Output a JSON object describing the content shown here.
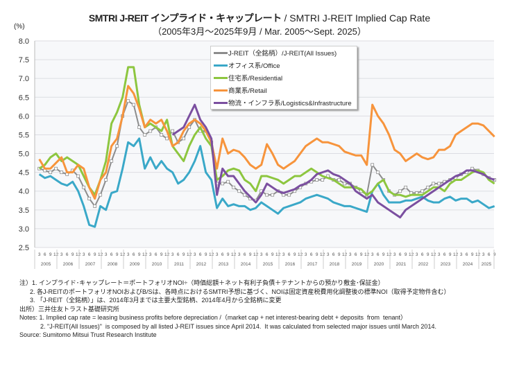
{
  "chart_data": {
    "type": "line",
    "title": "SMTRI J-REIT インプライド・キャップレート",
    "title_en": " / SMTRI J-REIT Implied Cap Rate",
    "subtitle": "（2005年3月～2025年9月 / Mar. 2005～Sept. 2025）",
    "ylabel": "(%)",
    "ylim": [
      2.5,
      8.0
    ],
    "yticks": [
      "2.5",
      "3.0",
      "3.5",
      "4.0",
      "4.5",
      "5.0",
      "5.5",
      "6.0",
      "6.5",
      "7.0",
      "7.5",
      "8.0"
    ],
    "month_ticks": [
      "3",
      "6",
      "9",
      "12"
    ],
    "years": [
      "2005",
      "2006",
      "2007",
      "2008",
      "2009",
      "2010",
      "2011",
      "2012",
      "2013",
      "2014",
      "2015",
      "2016",
      "2017",
      "2018",
      "2019",
      "2020",
      "2021",
      "2022",
      "2023",
      "2024",
      "2025"
    ],
    "grid": true,
    "legend_position": "top-center",
    "x_frequency": "quarterly (Mar, Jun, Sep, Dec), Mar 2005 – Sep 2025",
    "series": [
      {
        "name": "J-REIT（全銘柄）/J-REIT(All Issues)",
        "color": "#8c8c8c",
        "marker": "square",
        "start": "2005-03",
        "values": [
          4.6,
          4.55,
          4.5,
          4.6,
          4.5,
          4.45,
          4.55,
          4.4,
          4.1,
          3.8,
          3.6,
          3.9,
          4.3,
          4.8,
          5.2,
          6.0,
          6.4,
          6.3,
          5.7,
          5.5,
          5.6,
          5.7,
          5.5,
          5.4,
          5.6,
          5.3,
          5.4,
          5.7,
          5.9,
          5.6,
          5.6,
          5.3,
          4.2,
          4.2,
          4.25,
          4.1,
          4.0,
          3.9,
          3.8,
          3.75,
          4.0,
          3.9,
          3.9,
          4.0,
          3.9,
          3.9,
          4.0,
          4.1,
          4.2,
          4.25,
          4.3,
          4.3,
          4.4,
          4.3,
          4.3,
          4.2,
          4.2,
          4.1,
          4.0,
          3.9,
          4.7,
          4.5,
          4.3,
          4.0,
          3.9,
          4.0,
          4.1,
          3.95,
          3.95,
          4.0,
          4.1,
          4.2,
          4.2,
          4.25,
          4.3,
          4.35,
          4.45,
          4.5,
          4.6,
          4.55,
          4.45,
          4.35,
          4.3
        ]
      },
      {
        "name": "オフィス系/Office",
        "color": "#3aa8c8",
        "start": "2005-03",
        "values": [
          4.45,
          4.35,
          4.4,
          4.3,
          4.2,
          4.15,
          4.25,
          4.0,
          3.6,
          3.1,
          3.05,
          3.6,
          3.5,
          3.95,
          4.0,
          4.6,
          5.3,
          5.2,
          5.4,
          4.6,
          4.9,
          4.6,
          4.8,
          4.6,
          4.5,
          4.2,
          4.3,
          4.5,
          4.8,
          5.2,
          4.5,
          4.3,
          3.55,
          3.8,
          3.6,
          3.65,
          3.6,
          3.6,
          3.5,
          3.55,
          3.7,
          3.6,
          3.5,
          3.4,
          3.55,
          3.6,
          3.65,
          3.7,
          3.8,
          3.85,
          3.9,
          3.85,
          3.8,
          3.7,
          3.65,
          3.6,
          3.6,
          3.55,
          3.5,
          3.45,
          4.0,
          4.2,
          3.9,
          3.7,
          3.7,
          3.7,
          3.75,
          3.75,
          3.8,
          3.85,
          3.75,
          3.7,
          3.7,
          3.8,
          3.85,
          3.75,
          3.8,
          3.8,
          3.7,
          3.75,
          3.65,
          3.55,
          3.6
        ]
      },
      {
        "name": "住宅系/Residential",
        "color": "#8dc63f",
        "start": "2005-03",
        "values": [
          4.6,
          4.7,
          4.9,
          5.0,
          4.8,
          4.9,
          4.8,
          4.7,
          4.4,
          4.1,
          3.9,
          4.3,
          4.8,
          5.8,
          6.1,
          6.5,
          7.3,
          7.3,
          6.3,
          5.7,
          5.8,
          5.7,
          5.6,
          5.9,
          5.2,
          5.0,
          4.8,
          5.2,
          5.5,
          5.7,
          5.4,
          5.2,
          4.3,
          4.4,
          4.55,
          4.6,
          4.55,
          4.3,
          4.2,
          4.0,
          4.4,
          4.4,
          4.35,
          4.3,
          4.2,
          4.3,
          4.4,
          4.4,
          4.5,
          4.6,
          4.5,
          4.4,
          4.35,
          4.3,
          4.2,
          4.1,
          4.1,
          4.1,
          4.05,
          3.9,
          4.0,
          4.2,
          4.3,
          4.0,
          3.9,
          3.9,
          3.85,
          3.9,
          3.9,
          3.9,
          4.0,
          4.1,
          4.1,
          4.0,
          4.2,
          4.3,
          4.3,
          4.4,
          4.5,
          4.55,
          4.5,
          4.3,
          4.2
        ]
      },
      {
        "name": "商業系/Retail",
        "color": "#f7943c",
        "start": "2005-03",
        "values": [
          4.85,
          4.6,
          4.6,
          4.75,
          4.9,
          4.5,
          4.5,
          4.7,
          4.6,
          4.1,
          3.8,
          4.3,
          4.5,
          5.2,
          5.4,
          6.0,
          6.8,
          6.6,
          6.2,
          5.7,
          5.9,
          5.8,
          5.9,
          5.6,
          5.2,
          5.3,
          5.6,
          5.8,
          5.9,
          5.8,
          5.6,
          5.3,
          4.6,
          5.4,
          5.0,
          5.1,
          5.05,
          4.9,
          4.7,
          4.6,
          4.7,
          5.25,
          5.0,
          4.7,
          4.6,
          4.7,
          4.8,
          5.0,
          5.2,
          5.3,
          5.4,
          5.3,
          5.3,
          5.25,
          5.2,
          5.05,
          5.0,
          4.95,
          4.95,
          4.7,
          6.3,
          6.0,
          5.8,
          5.5,
          5.1,
          5.0,
          4.8,
          4.9,
          5.0,
          4.9,
          4.85,
          4.9,
          5.1,
          5.1,
          5.2,
          5.5,
          5.6,
          5.7,
          5.8,
          5.8,
          5.75,
          5.6,
          5.45
        ]
      },
      {
        "name": "物流・インフラ系/Logistics&Infrastructure",
        "color": "#7b4fa0",
        "start": "2011-03",
        "values": [
          5.5,
          5.6,
          5.7,
          6.0,
          6.3,
          5.9,
          5.7,
          5.4,
          3.9,
          4.6,
          4.4,
          4.4,
          4.2,
          4.0,
          3.85,
          3.7,
          3.9,
          4.2,
          4.1,
          4.0,
          3.95,
          4.0,
          4.05,
          4.15,
          4.2,
          4.3,
          4.45,
          4.5,
          4.55,
          4.45,
          4.4,
          4.3,
          4.2,
          4.0,
          3.9,
          3.8,
          3.9,
          3.7,
          3.6,
          3.5,
          3.4,
          3.3,
          3.5,
          3.6,
          3.7,
          3.8,
          3.9,
          4.0,
          4.1,
          4.2,
          4.3,
          4.4,
          4.45,
          4.55,
          4.55,
          4.5,
          4.45,
          4.35,
          4.3
        ]
      }
    ]
  },
  "notes": [
    "注）1. インプライド･キャップレート＝ポートフォリオNOI÷（時価総額＋ネット有利子負債＋テナントからの預かり敷金･保証金）",
    "      2. 各J-REITのポートフォリオNOIおよびB/Sは、各時点におけるSMTRI予想に基づく、NOIは固定資産税費用化調整後の標準NOI（取得予定物件含む）",
    "      3. 「J-REIT（全銘柄）」は、2014年3月までは主要大型銘柄、2014年4月から全銘柄に変更",
    "出所）三井住友トラスト基礎研究所",
    "Notes: 1. Implied cap rate = leasing business profits before depreciation /（market cap + net interest-bearing debt + deposits  from  tenant）",
    "            2. \"J-REIT(All Issues)\"  is composed by all listed J-REIT issues since April 2014.  It was calculated from selected major issues until March 2014.",
    "Source: Sumitomo Mitsui Trust Research Institute"
  ]
}
